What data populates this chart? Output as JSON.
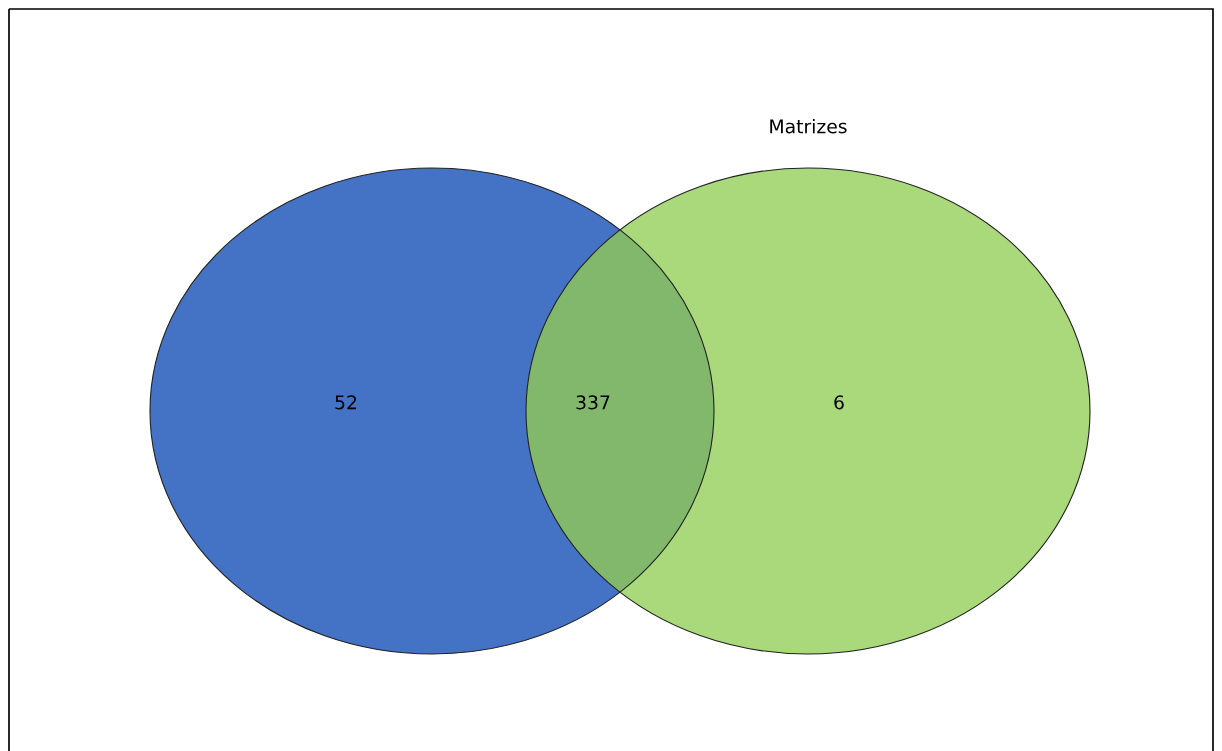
{
  "chart_data": {
    "type": "other",
    "categories": [
      null,
      null,
      null
    ],
    "colors": [
      "#4472c4",
      "#82b86b",
      "#a9d97b"
    ],
    "values": [
      52,
      337,
      6
    ],
    "data_labels": true,
    "annotations": [
      "Matrizes"
    ]
  }
}
